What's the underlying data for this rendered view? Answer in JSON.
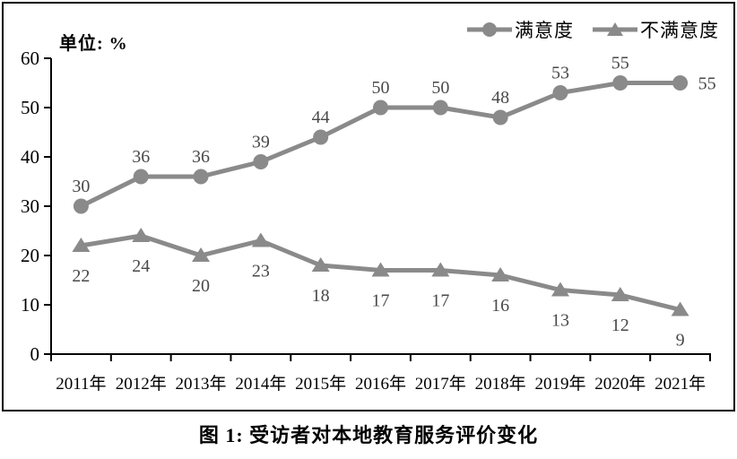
{
  "chart_data": {
    "type": "line",
    "title": "图 1: 受访者对本地教育服务评价变化",
    "unit_label": "单位: %",
    "categories": [
      "2011年",
      "2012年",
      "2013年",
      "2014年",
      "2015年",
      "2016年",
      "2017年",
      "2018年",
      "2019年",
      "2020年",
      "2021年"
    ],
    "series": [
      {
        "name": "满意度",
        "marker": "circle",
        "values": [
          30,
          36,
          36,
          39,
          44,
          50,
          50,
          48,
          53,
          55,
          55
        ],
        "label_position": "above",
        "last_label_position": "right"
      },
      {
        "name": "不满意度",
        "marker": "triangle",
        "values": [
          22,
          24,
          20,
          23,
          18,
          17,
          17,
          16,
          13,
          12,
          9
        ],
        "label_position": "below"
      }
    ],
    "ylim": [
      0,
      60
    ],
    "ytick_step": 10,
    "grid": false,
    "legend_position": "top-right",
    "line_color": "#8a8a8a",
    "data_label_color": "#494949",
    "axis_color": "#000000"
  }
}
